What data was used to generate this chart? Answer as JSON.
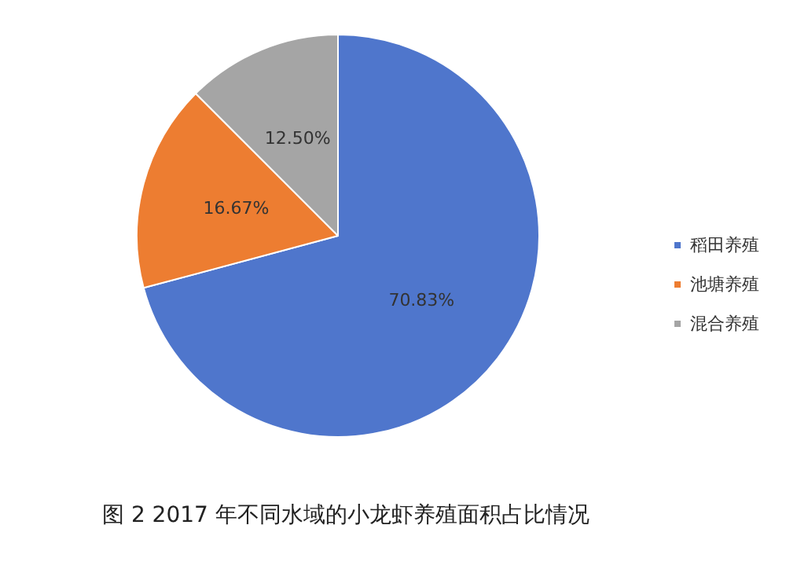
{
  "chart_data": {
    "type": "pie",
    "title": "图 2 2017 年不同水域的小龙虾养殖面积占比情况",
    "categories": [
      "稻田养殖",
      "池塘养殖",
      "混合养殖"
    ],
    "values": [
      70.83,
      16.67,
      12.5
    ],
    "value_labels": [
      "70.83%",
      "16.67%",
      "12.50%"
    ],
    "colors": [
      "#4f76cc",
      "#ed7d31",
      "#a5a5a5"
    ],
    "legend": "right"
  }
}
